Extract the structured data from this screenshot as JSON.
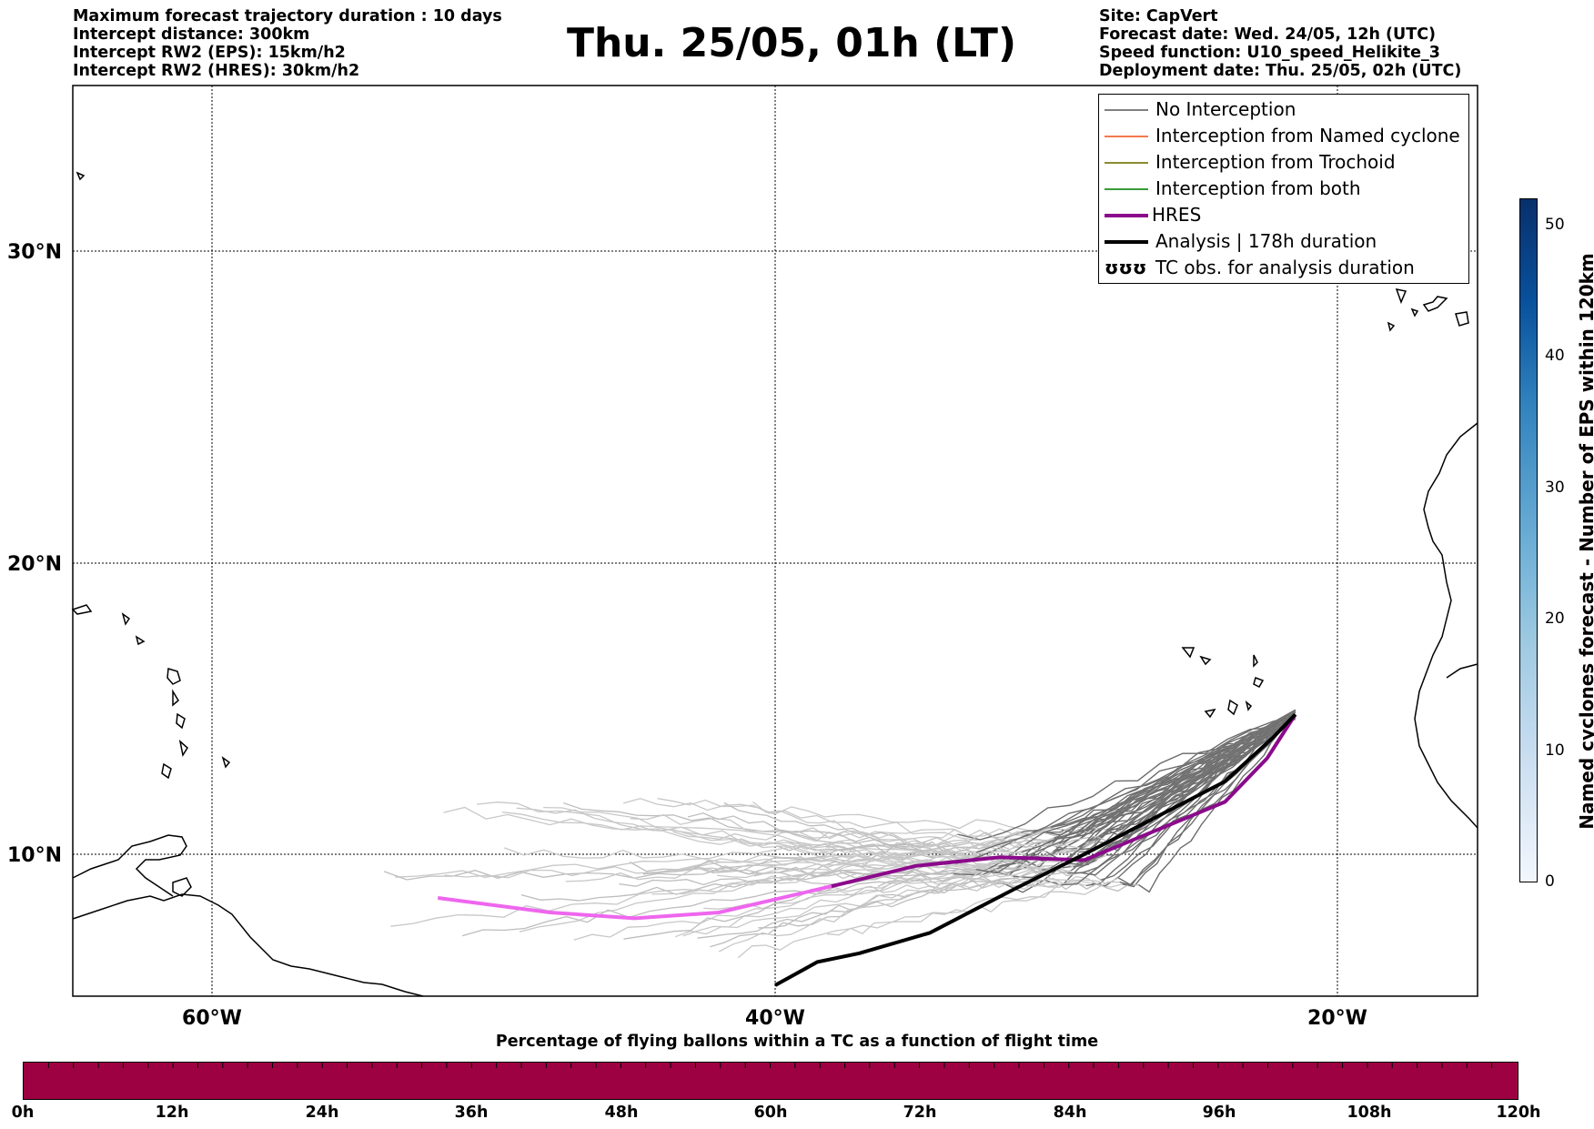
{
  "header_left": [
    "Maximum forecast trajectory duration : 10 days",
    "Intercept distance: 300km",
    "Intercept RW2 (EPS):  15km/h2",
    "Intercept RW2 (HRES): 30km/h2"
  ],
  "header_right": [
    "Site: CapVert",
    "Forecast date: Wed. 24/05, 12h (UTC)",
    "Speed function: U10_speed_Helikite_3",
    "Deployment date: Thu. 25/05, 02h (UTC)"
  ],
  "title": "Thu. 25/05, 01h (LT)",
  "map": {
    "lat_labels": [
      "30°N",
      "20°N",
      "10°N"
    ],
    "lon_labels": [
      "60°W",
      "40°W",
      "20°W"
    ],
    "extent": {
      "lon_min": -65,
      "lon_max": -15,
      "lat_min": 5.4,
      "lat_max": 34.6
    }
  },
  "legend": [
    {
      "label": "No Interception",
      "color": "#808080",
      "style": "thin"
    },
    {
      "label": "Interception from Named cyclone",
      "color": "#f4794d",
      "style": "thin"
    },
    {
      "label": "Interception from Trochoid",
      "color": "#8b8b2e",
      "style": "thin"
    },
    {
      "label": "Interception from both",
      "color": "#3a9a3a",
      "style": "thin"
    },
    {
      "label": "HRES",
      "color": "#8b0a8b",
      "style": "thick"
    },
    {
      "label": "Analysis | 178h duration",
      "color": "#000000",
      "style": "thick"
    },
    {
      "label": "TC obs. for analysis duration",
      "color": "#000000",
      "style": "symbol",
      "symbol": "ʊʊʊ"
    }
  ],
  "colorbar_vertical": {
    "label": "Named cyclones forecast - Number of EPS within 120km",
    "ticks": [
      "0",
      "10",
      "20",
      "30",
      "40",
      "50"
    ],
    "max": 52,
    "colors": [
      "#f2f7fd",
      "#08306b"
    ]
  },
  "colorbar_horizontal": {
    "title": "Percentage of flying ballons within a TC as a function of flight time",
    "ticks": [
      "0h",
      "12h",
      "24h",
      "36h",
      "48h",
      "60h",
      "72h",
      "84h",
      "96h",
      "108h",
      "120h"
    ],
    "color": "#9e0142"
  },
  "chart_data": {
    "type": "line",
    "hres_track": [
      [
        -52,
        8.5
      ],
      [
        -48,
        8.0
      ],
      [
        -45,
        7.8
      ],
      [
        -42,
        8.0
      ],
      [
        -38,
        8.9
      ],
      [
        -35,
        9.6
      ],
      [
        -32,
        9.9
      ],
      [
        -29,
        9.8
      ],
      [
        -26,
        11.0
      ],
      [
        -24,
        11.8
      ],
      [
        -22.5,
        13.3
      ],
      [
        -21.5,
        14.8
      ]
    ],
    "analysis_track": [
      [
        -40,
        5.5
      ],
      [
        -38.5,
        6.3
      ],
      [
        -37,
        6.6
      ],
      [
        -34.5,
        7.3
      ],
      [
        -31.5,
        8.8
      ],
      [
        -29,
        10.0
      ],
      [
        -26,
        11.5
      ],
      [
        -24,
        12.5
      ],
      [
        -22.3,
        14.0
      ],
      [
        -21.5,
        14.8
      ]
    ],
    "origin": [
      -21.5,
      14.8
    ]
  }
}
